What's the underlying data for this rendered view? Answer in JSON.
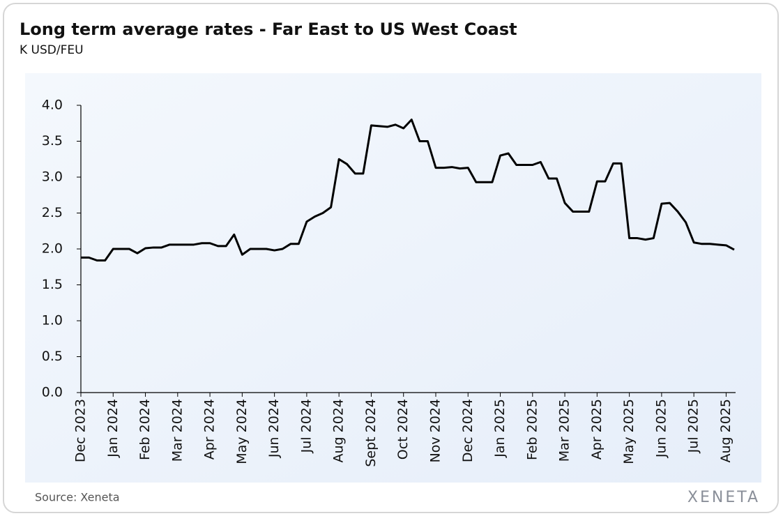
{
  "chart_data": {
    "type": "line",
    "title": "Long term average rates - Far East to US West Coast",
    "subtitle": "K USD/FEU",
    "source": "Source: Xeneta",
    "logo": "XENETA",
    "series": [
      {
        "name": "Long term average rate",
        "color": "#000000",
        "values": [
          1.88,
          1.88,
          1.84,
          1.84,
          2.0,
          2.0,
          2.0,
          1.94,
          2.01,
          2.02,
          2.02,
          2.06,
          2.06,
          2.06,
          2.06,
          2.08,
          2.08,
          2.04,
          2.04,
          2.2,
          1.92,
          2.0,
          2.0,
          2.0,
          1.98,
          2.0,
          2.07,
          2.07,
          2.38,
          2.45,
          2.5,
          2.58,
          3.25,
          3.18,
          3.05,
          3.05,
          3.72,
          3.71,
          3.7,
          3.73,
          3.68,
          3.8,
          3.5,
          3.5,
          3.13,
          3.13,
          3.14,
          3.12,
          3.13,
          2.93,
          2.93,
          2.93,
          3.3,
          3.33,
          3.17,
          3.17,
          3.17,
          3.21,
          2.98,
          2.98,
          2.64,
          2.52,
          2.52,
          2.52,
          2.94,
          2.94,
          3.19,
          3.19,
          2.15,
          2.15,
          2.13,
          2.15,
          2.63,
          2.64,
          2.52,
          2.37,
          2.09,
          2.07,
          2.07,
          2.06,
          2.05,
          1.99
        ]
      }
    ],
    "xlim": [
      0,
      81
    ],
    "xticks": [
      {
        "value": 0,
        "label": "Dec 2023"
      },
      {
        "value": 4,
        "label": "Jan 2024"
      },
      {
        "value": 8,
        "label": "Feb 2024"
      },
      {
        "value": 12,
        "label": "Mar 2024"
      },
      {
        "value": 16,
        "label": "Apr 2024"
      },
      {
        "value": 20,
        "label": "May 2024"
      },
      {
        "value": 24,
        "label": "Jun 2024"
      },
      {
        "value": 28,
        "label": "Jul 2024"
      },
      {
        "value": 32,
        "label": "Aug 2024"
      },
      {
        "value": 36,
        "label": "Sept 2024"
      },
      {
        "value": 40,
        "label": "Oct 2024"
      },
      {
        "value": 44,
        "label": "Nov 2024"
      },
      {
        "value": 48,
        "label": "Dec 2024"
      },
      {
        "value": 52,
        "label": "Jan 2025"
      },
      {
        "value": 56,
        "label": "Feb 2025"
      },
      {
        "value": 60,
        "label": "Mar 2025"
      },
      {
        "value": 64,
        "label": "Apr 2025"
      },
      {
        "value": 68,
        "label": "May 2025"
      },
      {
        "value": 72,
        "label": "Jun 2025"
      },
      {
        "value": 76,
        "label": "Jul 2025"
      },
      {
        "value": 80,
        "label": "Aug 2025"
      }
    ],
    "ylim": [
      0,
      4
    ],
    "yticks": [
      {
        "value": 0,
        "label": "0.0"
      },
      0.5,
      {
        "value": 1,
        "label": "1.0"
      },
      1.5,
      {
        "value": 2,
        "label": "2.0"
      },
      2.5,
      {
        "value": 3,
        "label": "3.0"
      },
      3.5,
      {
        "value": 4,
        "label": "4.0"
      }
    ]
  }
}
